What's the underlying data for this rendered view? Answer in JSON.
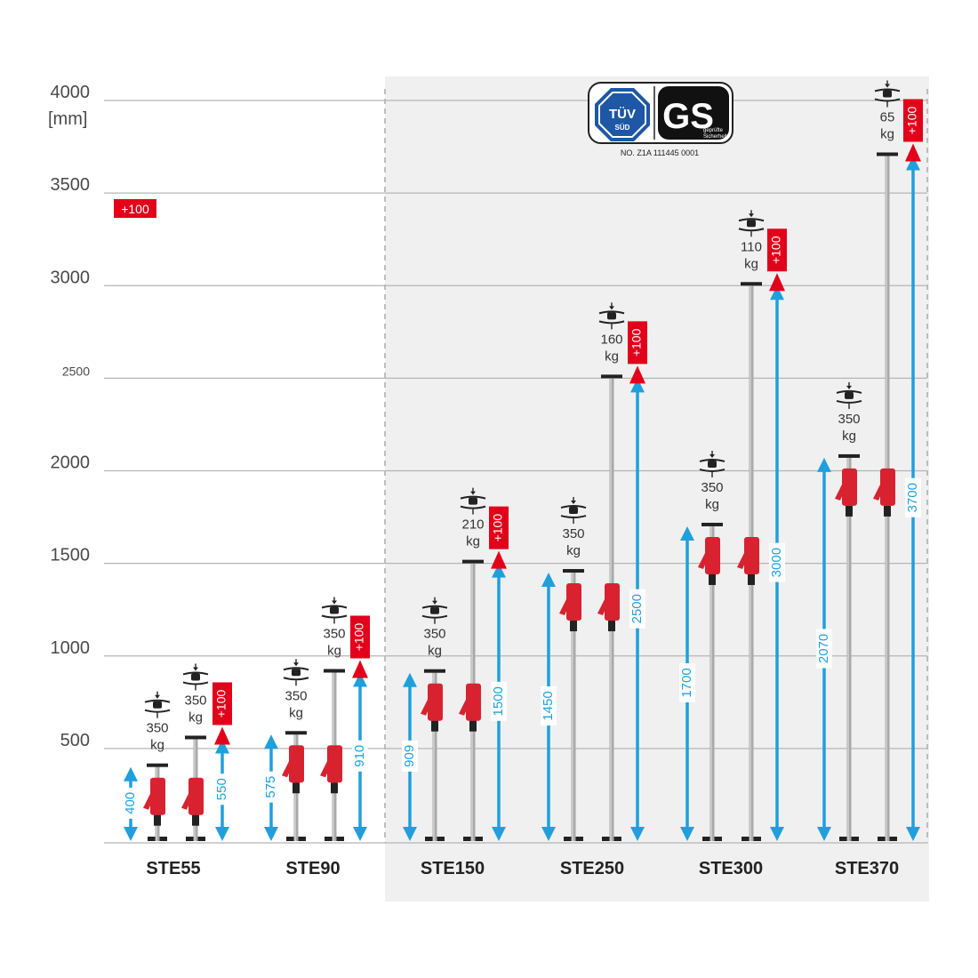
{
  "chart_data": {
    "type": "bar",
    "ylabel": "[mm]",
    "ylim": [
      0,
      4000
    ],
    "y_ticks": [
      "500",
      "1000",
      "1500",
      "2000",
      "2500",
      "3000",
      "3500",
      "4000"
    ],
    "extension_badge": "+100",
    "load_unit": "kg",
    "certification": {
      "tuv": "TÜV",
      "tuv_sub": "SÜD",
      "gs": "GS",
      "gs_sub1": "geprüfte",
      "gs_sub2": "Sicherheit",
      "number": "NO. Z1A 111445 0001"
    },
    "categories": [
      "STE55",
      "STE90",
      "STE150",
      "STE250",
      "STE300",
      "STE370"
    ],
    "series": [
      {
        "name": "min",
        "values": [
          400,
          575,
          909,
          1450,
          1700,
          2070
        ]
      },
      {
        "name": "max",
        "values": [
          550,
          910,
          1500,
          2500,
          3000,
          3700
        ]
      }
    ],
    "loads": [
      {
        "min": "350",
        "max": "350"
      },
      {
        "min": "350",
        "max": "350"
      },
      {
        "min": "350",
        "max": "210"
      },
      {
        "min": "350",
        "max": "160"
      },
      {
        "min": "350",
        "max": "110"
      },
      {
        "min": "350",
        "max": "65"
      }
    ]
  },
  "colors": {
    "arrow": "#1fa0dc",
    "badge": "#e2001a",
    "clamp": "#d8222f",
    "grid": "#b5b5b5",
    "panel": "#f0f0f0"
  }
}
